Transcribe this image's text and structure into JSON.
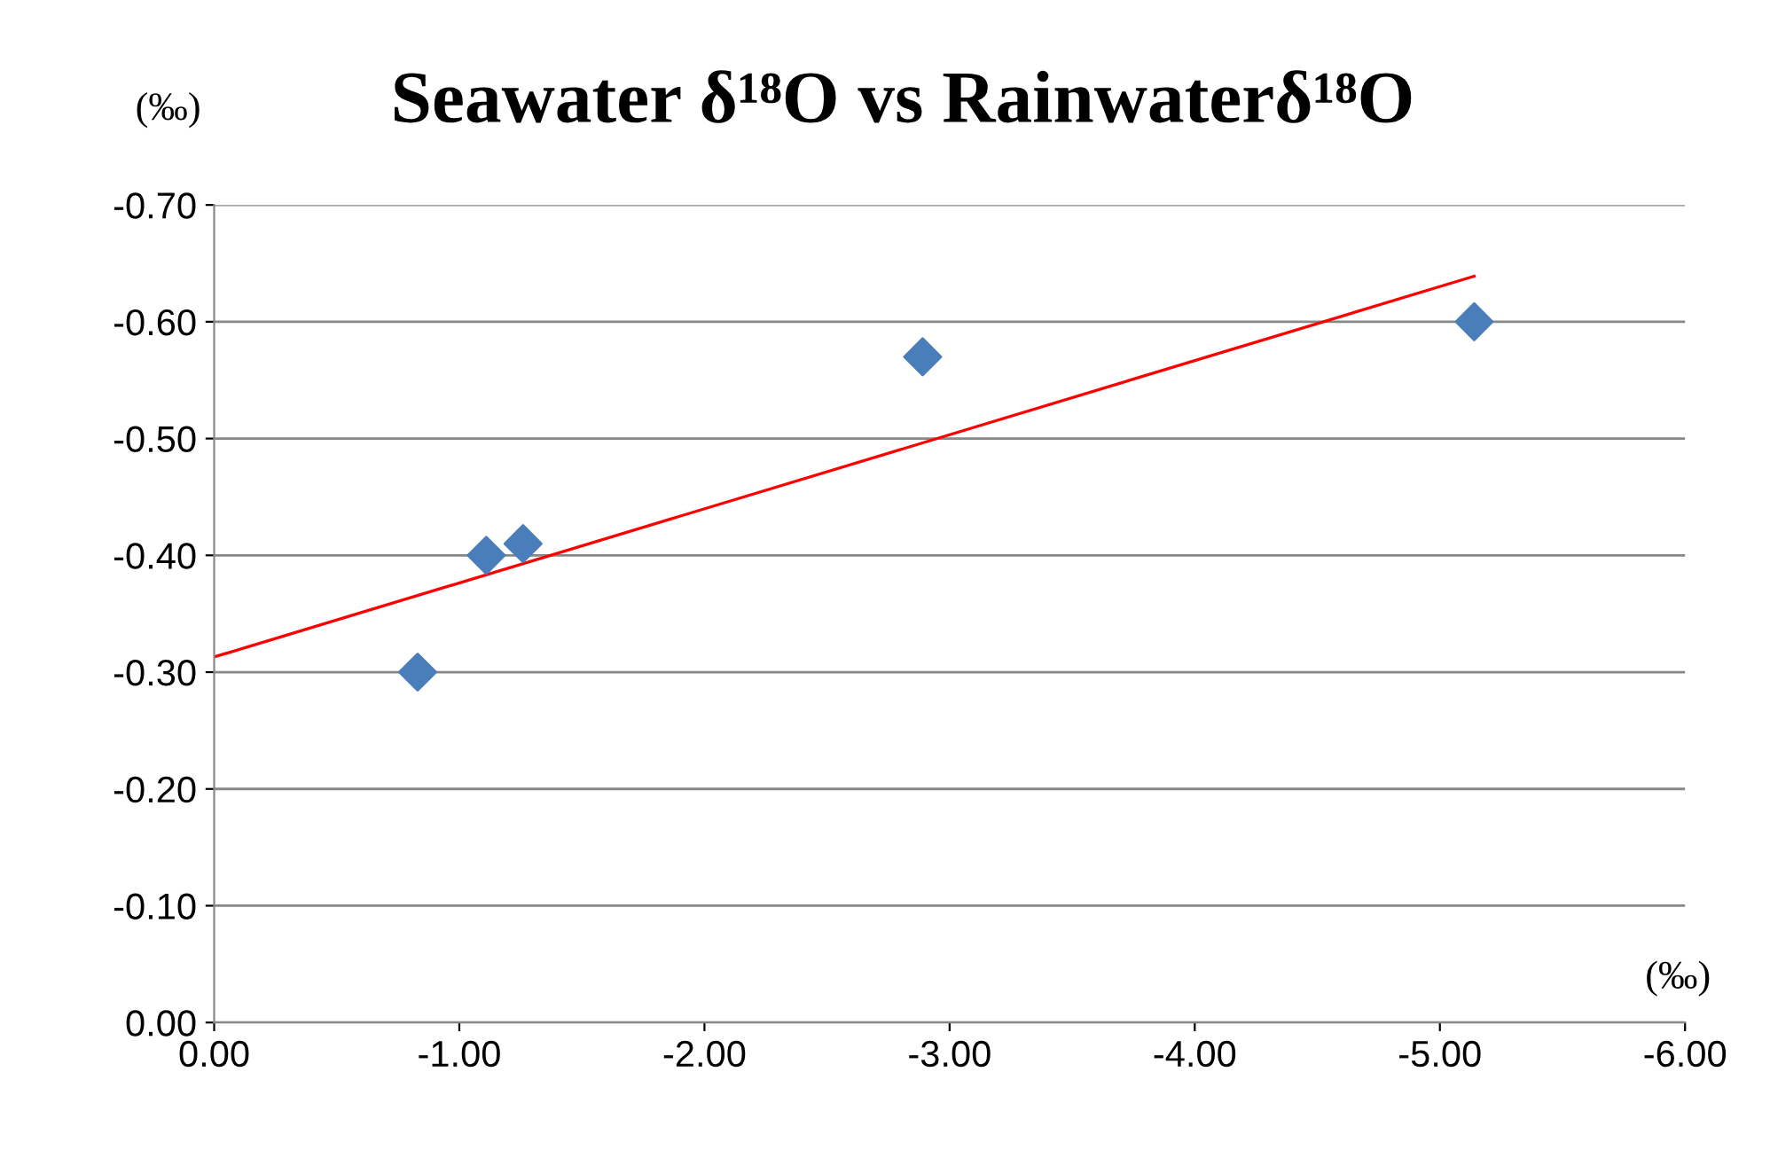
{
  "chart_data": {
    "type": "scatter",
    "title": "Seawater δ¹⁸O vs Rainwaterδ¹⁸O",
    "ylabel": "(‰)",
    "xlabel": "(‰)",
    "xlim": [
      0,
      -6
    ],
    "ylim": [
      0,
      -0.7
    ],
    "xticks": [
      {
        "value": 0,
        "label": "0.00"
      },
      {
        "value": -1,
        "label": "-1.00"
      },
      {
        "value": -2,
        "label": "-2.00"
      },
      {
        "value": -3,
        "label": "-3.00"
      },
      {
        "value": -4,
        "label": "-4.00"
      },
      {
        "value": -5,
        "label": "-5.00"
      },
      {
        "value": -6,
        "label": "-6.00"
      }
    ],
    "yticks": [
      {
        "value": 0,
        "label": "0.00"
      },
      {
        "value": -0.1,
        "label": "-0.10"
      },
      {
        "value": -0.2,
        "label": "-0.20"
      },
      {
        "value": -0.3,
        "label": "-0.30"
      },
      {
        "value": -0.4,
        "label": "-0.40"
      },
      {
        "value": -0.5,
        "label": "-0.50"
      },
      {
        "value": -0.6,
        "label": "-0.60"
      },
      {
        "value": -0.7,
        "label": "-0.70"
      }
    ],
    "grid": "y",
    "legend": false,
    "series": [
      {
        "color": "#4a7ebb",
        "marker": "diamond",
        "x": [
          -0.83,
          -1.11,
          -1.26,
          -2.89,
          -5.14
        ],
        "values": [
          -0.3,
          -0.4,
          -0.41,
          -0.57,
          -0.6
        ]
      },
      {
        "type": "line",
        "color": "#ff0000",
        "marker": "none",
        "line_style": "solid",
        "x": [
          0,
          -5.14
        ],
        "values": [
          -0.313,
          -0.639
        ]
      }
    ]
  }
}
